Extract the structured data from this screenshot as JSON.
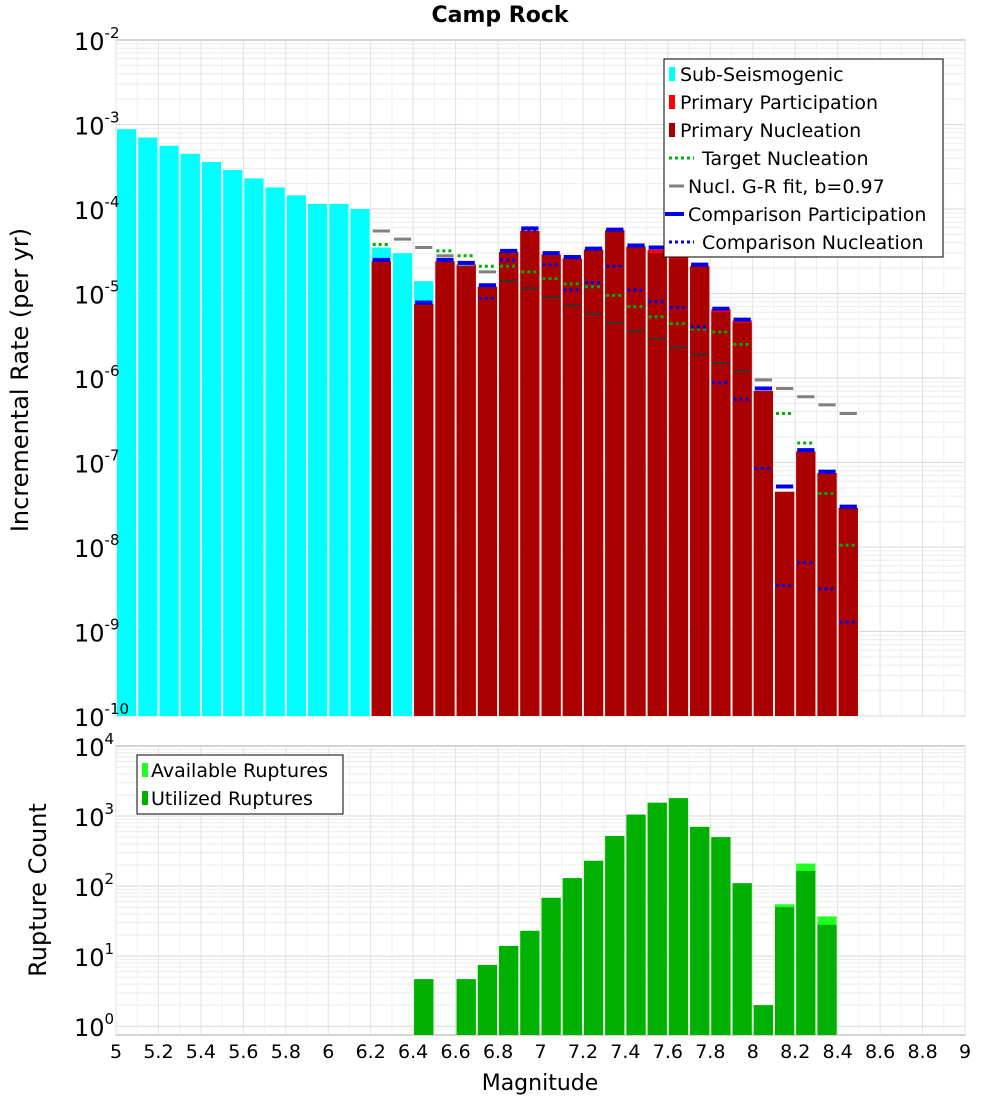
{
  "title": "Camp Rock",
  "xlabel": "Magnitude",
  "xticks": [
    "5",
    "5.2",
    "5.4",
    "5.6",
    "5.8",
    "6",
    "6.2",
    "6.4",
    "6.6",
    "6.8",
    "7",
    "7.2",
    "7.4",
    "7.6",
    "7.8",
    "8",
    "8.2",
    "8.4",
    "8.6",
    "8.8",
    "9"
  ],
  "colors": {
    "sub_seismogenic": "#00ffff",
    "primary_participation": "#ff0000",
    "primary_nucleation": "#aa0000",
    "target_nucleation": "#00b000",
    "gr_fit": "#808080",
    "gr_fit_dark": "#303030",
    "comparison": "#0000ee",
    "available": "#22ff22",
    "utilized": "#00b000"
  },
  "chart_data": [
    {
      "type": "bar",
      "ylabel": "Incremental Rate (per yr)",
      "yscale": "log",
      "xlim": [
        5,
        9
      ],
      "ylim": [
        1e-10,
        0.01
      ],
      "ytick_exponents": [
        "-10",
        "-9",
        "-8",
        "-7",
        "-6",
        "-5",
        "-4",
        "-3",
        "-2"
      ],
      "grid": true,
      "legend_position": "top-right",
      "legend": [
        "Sub-Seismogenic",
        "Primary Participation",
        "Primary Nucleation",
        "Target Nucleation",
        "Nucl. G-R fit, b=0.97",
        "Comparison Participation",
        "Comparison Nucleation"
      ],
      "sub_seismogenic": {
        "x": [
          5.05,
          5.15,
          5.25,
          5.35,
          5.45,
          5.55,
          5.65,
          5.75,
          5.85,
          5.95,
          6.05,
          6.15,
          6.25,
          6.35,
          6.45
        ],
        "values": [
          0.00088,
          0.0007,
          0.00056,
          0.00045,
          0.00036,
          0.00029,
          0.00023,
          0.00018,
          0.000145,
          0.000115,
          0.000115,
          0.0001,
          3.5e-05,
          3e-05,
          1.4e-05
        ]
      },
      "primary_participation": {
        "x": [
          6.25,
          6.45,
          6.55,
          6.65,
          6.75,
          6.85,
          6.95,
          7.05,
          7.15,
          7.25,
          7.35,
          7.45,
          7.55,
          7.65,
          7.75,
          7.85,
          7.95,
          8.05,
          8.15,
          8.25,
          8.35,
          8.45
        ],
        "values": [
          2.4e-05,
          7.5e-06,
          2.4e-05,
          2.2e-05,
          1.2e-05,
          3.1e-05,
          5.5e-05,
          2.9e-05,
          2.6e-05,
          3.3e-05,
          5.6e-05,
          3.6e-05,
          3.3e-05,
          3e-05,
          2.1e-05,
          6.5e-06,
          4.8e-06,
          7e-07,
          4.5e-08,
          1.35e-07,
          7.5e-08,
          2.9e-08
        ]
      },
      "primary_nucleation": {
        "x": [
          6.25,
          6.45,
          6.55,
          6.65,
          6.75,
          6.85,
          6.95,
          7.05,
          7.15,
          7.25,
          7.35,
          7.45,
          7.55,
          7.65,
          7.75,
          7.85,
          7.95,
          8.05,
          8.15,
          8.25,
          8.35,
          8.45
        ],
        "values": [
          2.4e-05,
          7.5e-06,
          2.4e-05,
          2.2e-05,
          1.2e-05,
          3.1e-05,
          5.5e-05,
          2.9e-05,
          2.6e-05,
          3.3e-05,
          5.6e-05,
          3.6e-05,
          3e-05,
          2.6e-05,
          2.1e-05,
          6e-06,
          4.5e-06,
          7e-07,
          4.5e-08,
          1.35e-07,
          7.5e-08,
          2.9e-08
        ]
      },
      "target_nucleation": {
        "x": [
          6.25,
          6.45,
          6.55,
          6.65,
          6.75,
          6.85,
          6.95,
          7.05,
          7.15,
          7.25,
          7.35,
          7.45,
          7.55,
          7.65,
          7.75,
          7.85,
          7.95,
          8.05,
          8.15,
          8.25,
          8.35,
          8.45
        ],
        "values": [
          3.8e-05,
          8e-06,
          3.2e-05,
          2.8e-05,
          2.1e-05,
          2.1e-05,
          1.8e-05,
          1.5e-05,
          1.3e-05,
          1.2e-05,
          9.5e-06,
          7e-06,
          5.3e-06,
          4.4e-06,
          3.8e-06,
          3.5e-06,
          2.5e-06,
          null,
          3.8e-07,
          1.7e-07,
          4.3e-08,
          1.05e-08
        ]
      },
      "gr_fit": {
        "x": [
          6.25,
          6.35,
          6.45,
          6.55,
          6.65,
          6.75,
          6.85,
          6.95,
          7.05,
          7.15,
          7.25,
          7.35,
          7.45,
          7.55,
          7.65,
          7.75,
          7.85,
          7.95,
          8.05,
          8.15,
          8.25,
          8.35,
          8.45
        ],
        "values": [
          5.5e-05,
          4.4e-05,
          3.5e-05,
          2.8e-05,
          2.2e-05,
          1.8e-05,
          1.4e-05,
          1.15e-05,
          9e-06,
          7.2e-06,
          5.7e-06,
          4.5e-06,
          3.6e-06,
          2.9e-06,
          2.3e-06,
          1.9e-06,
          1.5e-06,
          1.2e-06,
          9.5e-07,
          7.5e-07,
          6e-07,
          4.8e-07,
          3.8e-07
        ]
      },
      "comparison_participation": {
        "x": [
          6.25,
          6.45,
          6.55,
          6.65,
          6.75,
          6.85,
          6.95,
          7.05,
          7.15,
          7.25,
          7.35,
          7.45,
          7.55,
          7.65,
          7.75,
          7.85,
          7.95,
          8.05,
          8.15,
          8.25,
          8.35,
          8.45
        ],
        "values": [
          2.5e-05,
          7.8e-06,
          2.5e-05,
          2.3e-05,
          1.25e-05,
          3.2e-05,
          5.9e-05,
          3e-05,
          2.7e-05,
          3.4e-05,
          5.7e-05,
          3.7e-05,
          3.5e-05,
          3.5e-05,
          2.2e-05,
          6.6e-06,
          4.9e-06,
          7.5e-07,
          5.2e-08,
          1.4e-07,
          7.8e-08,
          3e-08
        ]
      },
      "comparison_nucleation": {
        "x": [
          6.75,
          6.85,
          6.95,
          7.05,
          7.15,
          7.25,
          7.35,
          7.45,
          7.55,
          7.65,
          7.75,
          7.85,
          7.95,
          8.05,
          8.15,
          8.25,
          8.35,
          8.45
        ],
        "values": [
          8.8e-06,
          2.5e-05,
          5.7e-05,
          2.2e-05,
          1.1e-05,
          1.35e-05,
          2.1e-05,
          1.1e-05,
          8e-06,
          6.8e-06,
          4e-06,
          8.8e-07,
          5.6e-07,
          8.5e-08,
          3.5e-09,
          6.5e-09,
          3.2e-09,
          1.3e-09
        ]
      }
    },
    {
      "type": "bar",
      "ylabel": "Rupture Count",
      "yscale": "log",
      "xlim": [
        5,
        9
      ],
      "ylim": [
        0.75,
        10000.0
      ],
      "ytick_exponents": [
        "0",
        "1",
        "2",
        "3",
        "4"
      ],
      "grid": true,
      "legend_position": "top-left",
      "legend": [
        "Available Ruptures",
        "Utilized Ruptures"
      ],
      "x": [
        6.45,
        6.65,
        6.75,
        6.85,
        6.95,
        7.05,
        7.15,
        7.25,
        7.35,
        7.45,
        7.55,
        7.65,
        7.75,
        7.85,
        7.95,
        8.05,
        8.15,
        8.25,
        8.35
      ],
      "series": [
        {
          "name": "Available Ruptures",
          "values": [
            4.7,
            4.7,
            7.5,
            14,
            23,
            68,
            130,
            230,
            520,
            1050,
            1550,
            1800,
            700,
            500,
            110,
            2,
            55,
            210,
            37
          ]
        },
        {
          "name": "Utilized Ruptures",
          "values": [
            4.7,
            4.7,
            7.5,
            14,
            23,
            68,
            130,
            230,
            520,
            1050,
            1550,
            1800,
            700,
            500,
            110,
            2,
            50,
            165,
            28
          ]
        }
      ]
    }
  ]
}
